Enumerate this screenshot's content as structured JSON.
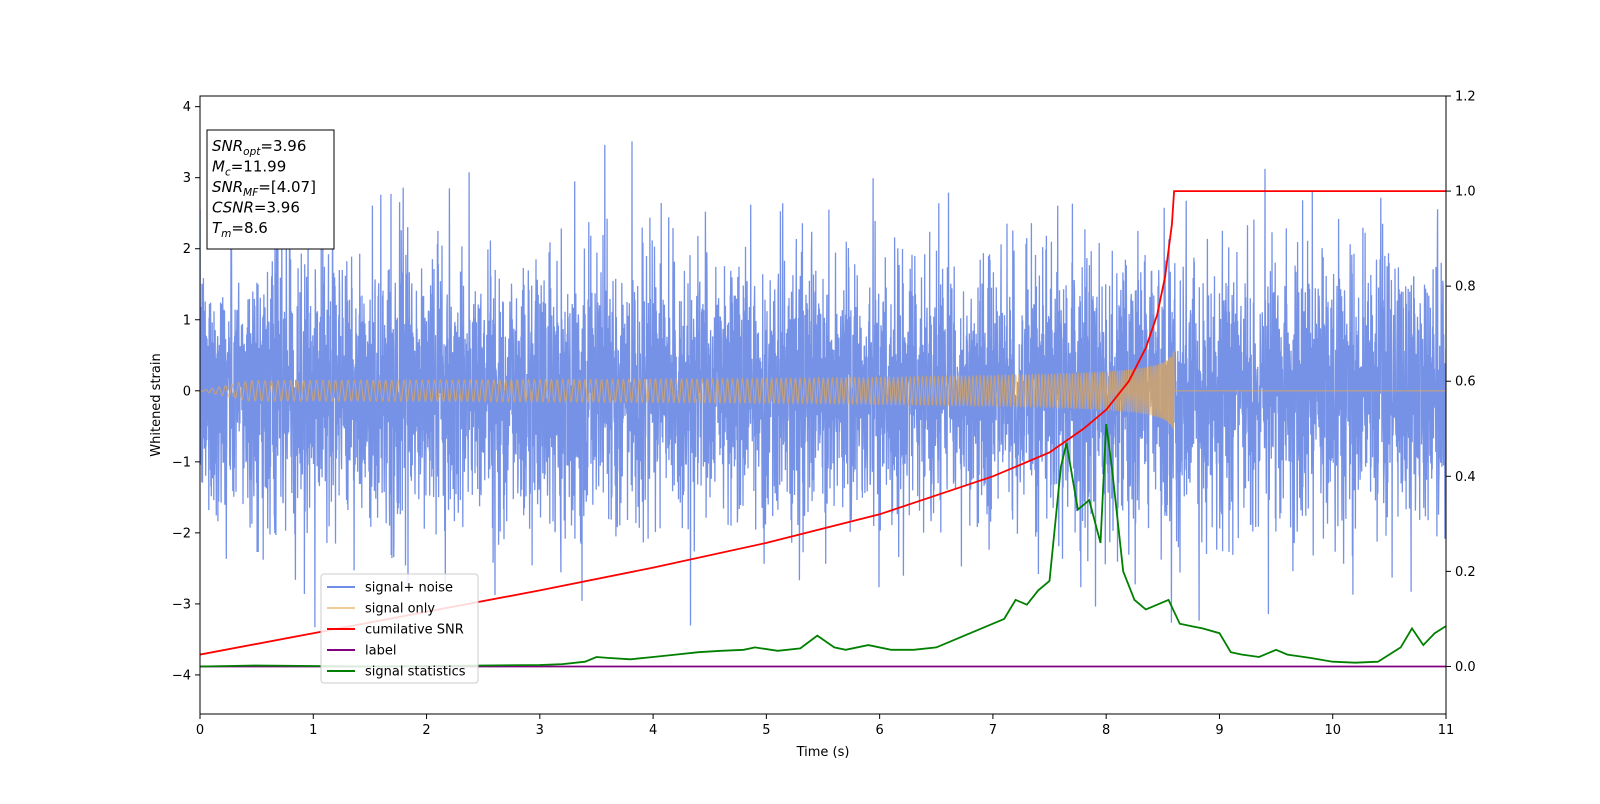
{
  "chart_data": {
    "type": "line",
    "xlabel": "Time (s)",
    "ylabel": "Whitened strain",
    "xlim": [
      0,
      11
    ],
    "ylim": [
      -4.55,
      4.15
    ],
    "y2lim": [
      -0.1,
      1.2
    ],
    "xticks": [
      0,
      1,
      2,
      3,
      4,
      5,
      6,
      7,
      8,
      9,
      10,
      11
    ],
    "yticks": [
      -4,
      -3,
      -2,
      -1,
      0,
      1,
      2,
      3,
      4
    ],
    "y2ticks": [
      0.0,
      0.2,
      0.4,
      0.6,
      0.8,
      1.0,
      1.2
    ],
    "grid": false,
    "legend_position": "lower-left",
    "info_box": [
      {
        "sym": "SNR",
        "sub": "opt",
        "value": "=3.96"
      },
      {
        "sym": "M",
        "sub": "c",
        "value": "=11.99"
      },
      {
        "sym": "SNR",
        "sub": "MF",
        "value": "=[4.07]"
      },
      {
        "sym": "CSNR",
        "sub": "",
        "value": "=3.96"
      },
      {
        "sym": "T",
        "sub": "m",
        "value": "=8.6"
      }
    ],
    "series": [
      {
        "name": "signal+ noise",
        "axis": "left",
        "color": "#6f8ce6",
        "description_level": "dense noise, std about 1, range about -4.2 to 3.7",
        "noise_std": 1.0
      },
      {
        "name": "signal only",
        "axis": "left",
        "color": "#e6a850",
        "chirp_merger_time": 8.6,
        "chirp_peak_amplitude": 0.58
      },
      {
        "name": "cumilative SNR",
        "axis": "right",
        "color": "#ff0000",
        "x": [
          0,
          1,
          2,
          3,
          4,
          5,
          6,
          6.5,
          7,
          7.5,
          7.8,
          8.0,
          8.2,
          8.35,
          8.45,
          8.52,
          8.58,
          8.6,
          11
        ],
        "values": [
          0.025,
          0.07,
          0.115,
          0.16,
          0.208,
          0.26,
          0.32,
          0.36,
          0.4,
          0.45,
          0.5,
          0.54,
          0.6,
          0.67,
          0.74,
          0.82,
          0.93,
          1.0,
          1.0
        ]
      },
      {
        "name": "label",
        "axis": "right",
        "color": "#800080",
        "x": [
          0,
          11
        ],
        "values": [
          0,
          0
        ]
      },
      {
        "name": "signal statistics",
        "axis": "right",
        "color": "#008000",
        "x": [
          0,
          0.5,
          1,
          1.5,
          2,
          2.5,
          3,
          3.2,
          3.4,
          3.5,
          3.6,
          3.8,
          4,
          4.2,
          4.4,
          4.6,
          4.8,
          4.9,
          5.1,
          5.3,
          5.45,
          5.6,
          5.7,
          5.9,
          6.1,
          6.3,
          6.5,
          6.7,
          6.85,
          6.95,
          7.1,
          7.2,
          7.3,
          7.4,
          7.5,
          7.6,
          7.65,
          7.75,
          7.85,
          7.95,
          8.0,
          8.05,
          8.15,
          8.25,
          8.35,
          8.45,
          8.55,
          8.65,
          8.75,
          8.85,
          9.0,
          9.1,
          9.2,
          9.35,
          9.5,
          9.6,
          9.8,
          10,
          10.2,
          10.4,
          10.6,
          10.7,
          10.8,
          10.9,
          11
        ],
        "values": [
          0.0,
          0.002,
          0.001,
          0.0,
          0.001,
          0.002,
          0.003,
          0.005,
          0.01,
          0.02,
          0.018,
          0.015,
          0.02,
          0.025,
          0.03,
          0.033,
          0.035,
          0.04,
          0.033,
          0.038,
          0.065,
          0.04,
          0.035,
          0.045,
          0.035,
          0.035,
          0.04,
          0.06,
          0.075,
          0.085,
          0.1,
          0.14,
          0.13,
          0.16,
          0.18,
          0.42,
          0.47,
          0.33,
          0.35,
          0.26,
          0.51,
          0.42,
          0.2,
          0.14,
          0.12,
          0.13,
          0.14,
          0.09,
          0.085,
          0.08,
          0.07,
          0.03,
          0.025,
          0.02,
          0.035,
          0.025,
          0.018,
          0.01,
          0.008,
          0.01,
          0.04,
          0.08,
          0.045,
          0.07,
          0.085
        ]
      }
    ]
  }
}
